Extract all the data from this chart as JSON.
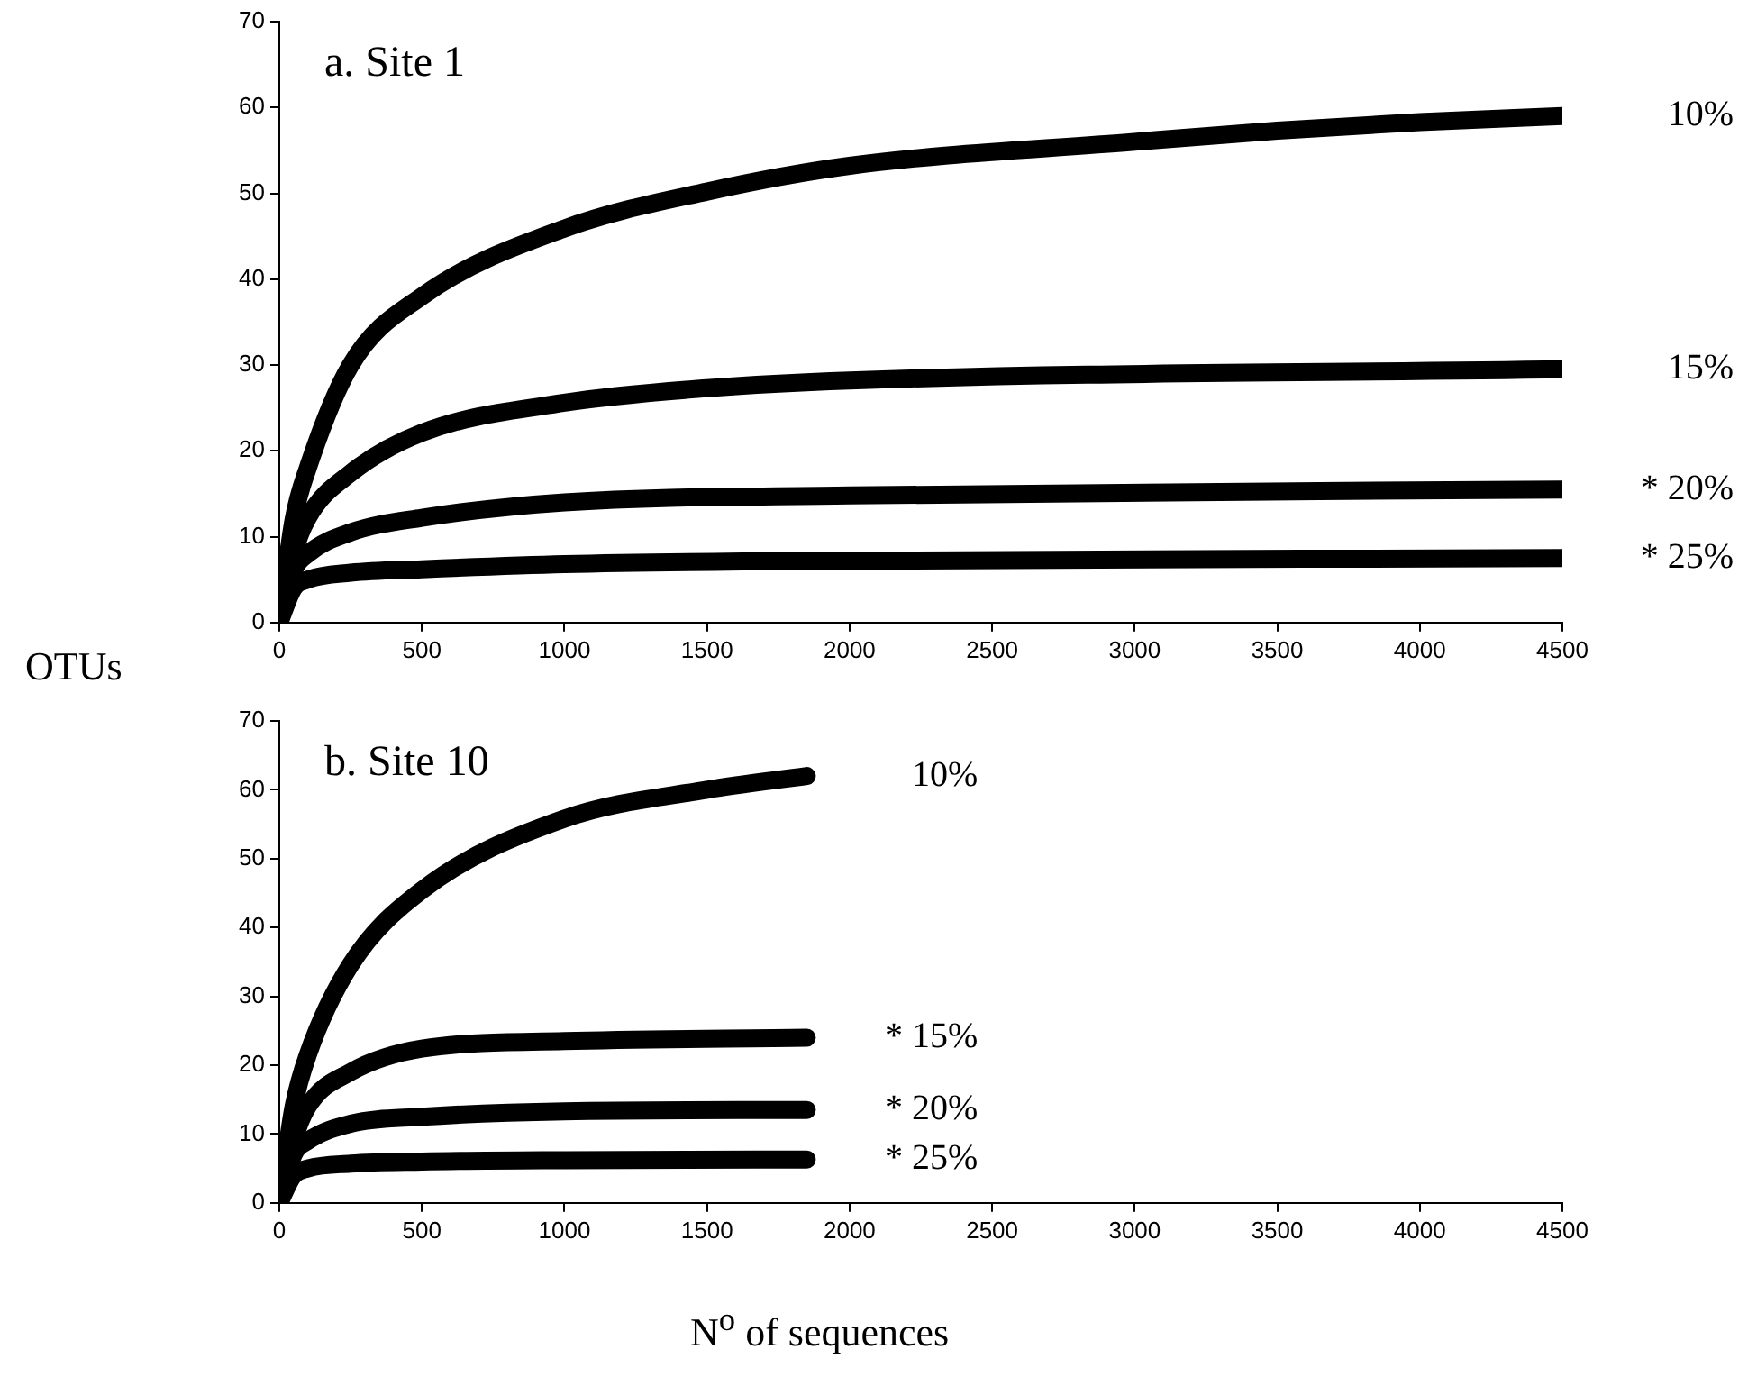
{
  "chart_data": [
    {
      "type": "line",
      "title": "a. Site 1",
      "ylabel": "OTUs",
      "xlim": [
        0,
        4500
      ],
      "xticks": [
        0,
        500,
        1000,
        1500,
        2000,
        2500,
        3000,
        3500,
        4000,
        4500
      ],
      "ylim": [
        0,
        70
      ],
      "yticks": [
        0,
        10,
        20,
        30,
        40,
        50,
        60,
        70
      ],
      "grid": false,
      "legend": false,
      "series": [
        {
          "name": "10%",
          "color": "#000000",
          "x": [
            0,
            50,
            100,
            250,
            500,
            1000,
            1500,
            2000,
            3000,
            3500,
            4000,
            4500
          ],
          "values": [
            0,
            12,
            18,
            30,
            38,
            45.9,
            50.2,
            53.2,
            56,
            57.3,
            58.3,
            59
          ]
        },
        {
          "name": "15%",
          "color": "#000000",
          "x": [
            0,
            50,
            100,
            250,
            500,
            1000,
            1500,
            2000,
            4500
          ],
          "values": [
            0,
            8,
            12.2,
            17.4,
            22.1,
            25.6,
            27.3,
            28.2,
            29.5
          ]
        },
        {
          "name": "* 20%",
          "color": "#000000",
          "x": [
            0,
            50,
            100,
            250,
            500,
            1000,
            2000,
            4500
          ],
          "values": [
            0,
            6,
            8,
            10.5,
            12.2,
            14,
            14.8,
            15.5
          ]
        },
        {
          "name": "* 25%",
          "color": "#000000",
          "x": [
            0,
            50,
            100,
            250,
            500,
            1000,
            2000,
            4500
          ],
          "values": [
            0,
            4,
            5,
            5.8,
            6.2,
            6.8,
            7.2,
            7.5
          ]
        }
      ]
    },
    {
      "type": "line",
      "title": "b. Site 10",
      "xlabel": "N$^{o}$ of sequences",
      "xlim": [
        0,
        4500
      ],
      "xticks": [
        0,
        500,
        1000,
        1500,
        2000,
        2500,
        3000,
        3500,
        4000,
        4500
      ],
      "ylim": [
        0,
        70
      ],
      "yticks": [
        0,
        10,
        20,
        30,
        40,
        50,
        60,
        70
      ],
      "grid": false,
      "legend": false,
      "series": [
        {
          "name": "10%",
          "color": "#000000",
          "x": [
            0,
            50,
            100,
            250,
            500,
            1000,
            1500,
            1850
          ],
          "values": [
            0,
            14,
            21.5,
            34.6,
            45.4,
            55.8,
            60,
            62
          ]
        },
        {
          "name": "* 15%",
          "color": "#000000",
          "x": [
            0,
            50,
            100,
            250,
            500,
            1000,
            1850
          ],
          "values": [
            0,
            9,
            14,
            19,
            22.4,
            23.5,
            24
          ]
        },
        {
          "name": "* 20%",
          "color": "#000000",
          "x": [
            0,
            50,
            100,
            250,
            500,
            1000,
            1850
          ],
          "values": [
            0,
            7,
            9,
            11.5,
            12.5,
            13.3,
            13.5
          ]
        },
        {
          "name": "* 25%",
          "color": "#000000",
          "x": [
            0,
            50,
            100,
            250,
            500,
            1000,
            1850
          ],
          "values": [
            0,
            4,
            5,
            5.7,
            6,
            6.2,
            6.3
          ]
        }
      ]
    }
  ]
}
